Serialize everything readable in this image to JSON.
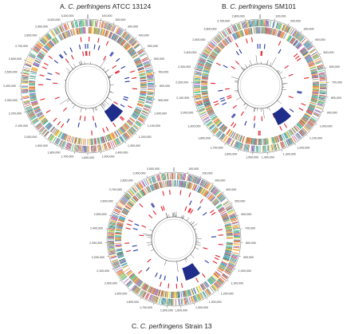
{
  "panels": [
    {
      "letter": "A.",
      "species": "C. perfringens",
      "strain": "ATCC 13124",
      "tick_labels": [
        "100,000",
        "200,000",
        "300,000",
        "400,000",
        "500,000",
        "600,000",
        "700,000",
        "800,000",
        "900,000",
        "1,000,000",
        "1,100,000",
        "1,200,000",
        "1,300,000",
        "1,400,000",
        "1,500,000",
        "1,600,000",
        "1,700,000",
        "1,800,000",
        "1,900,000",
        "2,000,000",
        "2,100,000",
        "2,200,000",
        "2,300,000",
        "2,400,000",
        "2,500,000",
        "2,600,000",
        "2,700,000",
        "2,800,000",
        "2,900,000",
        "3,000,000",
        "3,100,000"
      ]
    },
    {
      "letter": "B.",
      "species": "C. perfringens",
      "strain": "SM101",
      "tick_labels": [
        "100,000",
        "200,000",
        "300,000",
        "400,000",
        "500,000",
        "600,000",
        "700,000",
        "800,000",
        "900,000",
        "1,000,000",
        "1,100,000",
        "1,200,000",
        "1,300,000",
        "1,400,000",
        "1,500,000",
        "1,600,000",
        "1,700,000",
        "1,800,000",
        "1,900,000",
        "2,000,000",
        "2,100,000",
        "2,200,000",
        "2,300,000",
        "2,400,000",
        "2,500,000",
        "2,600,000",
        "2,700,000",
        "2,800,000"
      ]
    },
    {
      "letter": "C.",
      "species": "C. perfringens",
      "strain": "Strain 13",
      "tick_labels": [
        "100,000",
        "200,000",
        "300,000",
        "400,000",
        "500,000",
        "600,000",
        "700,000",
        "800,000",
        "900,000",
        "1,000,000",
        "1,100,000",
        "1,200,000",
        "1,300,000",
        "1,400,000",
        "1,500,000",
        "1,600,000",
        "1,700,000",
        "1,800,000",
        "1,900,000",
        "2,000,000",
        "2,100,000",
        "2,200,000",
        "2,300,000",
        "2,400,000",
        "2,500,000",
        "2,600,000",
        "2,700,000",
        "2,800,000",
        "2,900,000",
        "3,000,000"
      ]
    }
  ],
  "colors": {
    "outer_ring_palette": [
      "#c0392b",
      "#e67e22",
      "#27ae60",
      "#2980b9",
      "#8e44ad",
      "#16a085",
      "#f1c40f",
      "#7f8c8d",
      "#34495e",
      "#d35400"
    ],
    "gene_ring": "#1f2f8a",
    "feature_red": "#e0202a",
    "feature_blue": "#2435a0",
    "skew_line": "#333333"
  }
}
